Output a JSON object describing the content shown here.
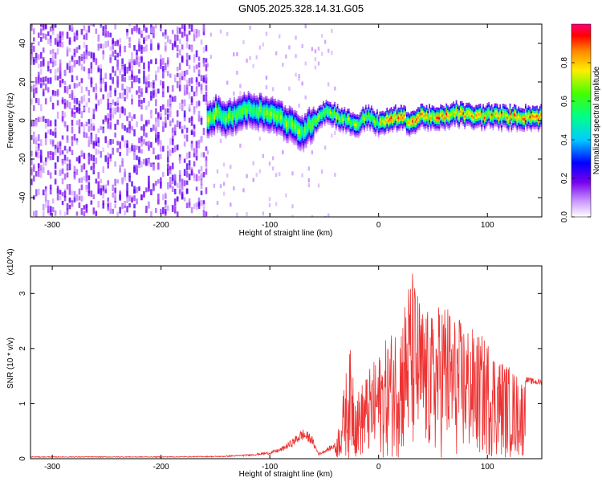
{
  "title": "GN05.2025.328.14.31.G05",
  "chart_data": [
    {
      "type": "heatmap",
      "xlabel": "Height of straight line (km)",
      "ylabel": "Frequency (Hz)",
      "xlim": [
        -320,
        150
      ],
      "ylim": [
        -50,
        50
      ],
      "xticks": [
        -300,
        -200,
        -100,
        0,
        100
      ],
      "yticks": [
        -40,
        -20,
        0,
        20,
        40
      ],
      "colorbar": {
        "label": "Normalized spectral amplitude",
        "range": [
          0,
          1
        ],
        "ticks": [
          0.0,
          0.2,
          0.4,
          0.6,
          0.8
        ],
        "colormap": "rainbow"
      },
      "ridge_center_hz": [
        [
          -158,
          0
        ],
        [
          -150,
          4
        ],
        [
          -140,
          1
        ],
        [
          -130,
          4
        ],
        [
          -120,
          6
        ],
        [
          -110,
          5
        ],
        [
          -100,
          4
        ],
        [
          -90,
          1
        ],
        [
          -80,
          -3
        ],
        [
          -70,
          -6
        ],
        [
          -60,
          0
        ],
        [
          -50,
          5
        ],
        [
          -40,
          3
        ],
        [
          -30,
          0
        ],
        [
          -20,
          -2
        ],
        [
          -10,
          3
        ],
        [
          0,
          -2
        ],
        [
          10,
          1
        ],
        [
          20,
          2
        ],
        [
          30,
          -1
        ],
        [
          40,
          3
        ],
        [
          50,
          1
        ],
        [
          60,
          2
        ],
        [
          70,
          4
        ],
        [
          80,
          3
        ],
        [
          90,
          2
        ],
        [
          100,
          3
        ],
        [
          110,
          2
        ],
        [
          120,
          2
        ],
        [
          130,
          2
        ],
        [
          150,
          2
        ]
      ]
    },
    {
      "type": "line",
      "xlabel": "Height of straight line (km)",
      "ylabel": "SNR (10 * v/v)",
      "y_multiplier_label": "(x10^4)",
      "xlim": [
        -320,
        150
      ],
      "ylim": [
        0,
        3.5
      ],
      "xticks": [
        -300,
        -200,
        -100,
        0,
        100
      ],
      "yticks": [
        0,
        1,
        2,
        3
      ],
      "series": [
        {
          "color": "#ee3333",
          "envelope": [
            [
              -320,
              0.04
            ],
            [
              -200,
              0.04
            ],
            [
              -145,
              0.05
            ],
            [
              -120,
              0.08
            ],
            [
              -100,
              0.13
            ],
            [
              -90,
              0.2
            ],
            [
              -80,
              0.35
            ],
            [
              -70,
              0.55
            ],
            [
              -62,
              0.45
            ],
            [
              -55,
              0.1
            ],
            [
              -40,
              0.3
            ],
            [
              -35,
              0.8
            ],
            [
              -30,
              1.6
            ],
            [
              -25,
              2.1
            ],
            [
              -20,
              1.2
            ],
            [
              -10,
              1.6
            ],
            [
              0,
              1.9
            ],
            [
              10,
              2.3
            ],
            [
              20,
              2.6
            ],
            [
              30,
              3.5
            ],
            [
              40,
              2.8
            ],
            [
              50,
              2.6
            ],
            [
              60,
              3.0
            ],
            [
              70,
              2.6
            ],
            [
              80,
              2.5
            ],
            [
              90,
              2.3
            ],
            [
              100,
              2.2
            ],
            [
              110,
              1.9
            ],
            [
              120,
              1.7
            ],
            [
              130,
              1.5
            ],
            [
              140,
              1.42
            ],
            [
              150,
              1.4
            ]
          ]
        }
      ]
    }
  ]
}
